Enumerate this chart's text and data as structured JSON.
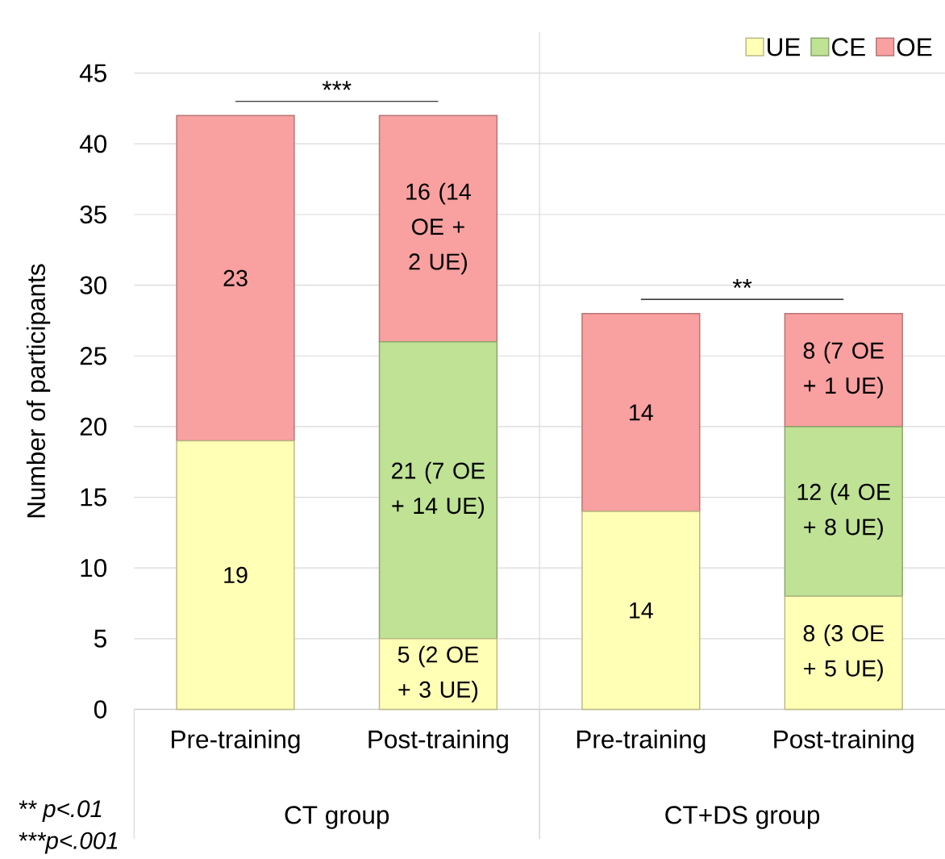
{
  "chart_data": {
    "type": "bar",
    "stacked": true,
    "categories": [
      "Pre-training",
      "Post-training",
      "Pre-training",
      "Post-training"
    ],
    "ylabel": "Number of participants",
    "ylim": [
      0,
      45
    ],
    "yticks": [
      0,
      5,
      10,
      15,
      20,
      25,
      30,
      35,
      40,
      45
    ],
    "grid": "y",
    "legend": "top right",
    "series": [
      {
        "name": "UE",
        "color": "#ffffb5",
        "values": [
          19,
          5,
          14,
          8
        ],
        "value_labels": [
          "19",
          "5 (2 OE + 3 UE)",
          "14",
          "8 (3 OE + 5 UE)"
        ]
      },
      {
        "name": "CE",
        "color": "#bfe294",
        "values": [
          null,
          21,
          null,
          12
        ],
        "value_labels": [
          null,
          "21 (7 OE + 14 UE)",
          null,
          "12 (4 OE + 8 UE)"
        ]
      },
      {
        "name": "OE",
        "color": "#f9a0a0",
        "values": [
          23,
          16,
          14,
          8
        ],
        "value_labels": [
          "23",
          "16 (14 OE + 2 UE)",
          "14",
          "8 (7 OE + 1 UE)"
        ]
      }
    ],
    "annotations": [
      "***",
      "**",
      "CT group",
      "CT+DS group",
      "** p<.01",
      "***p<.001"
    ]
  }
}
